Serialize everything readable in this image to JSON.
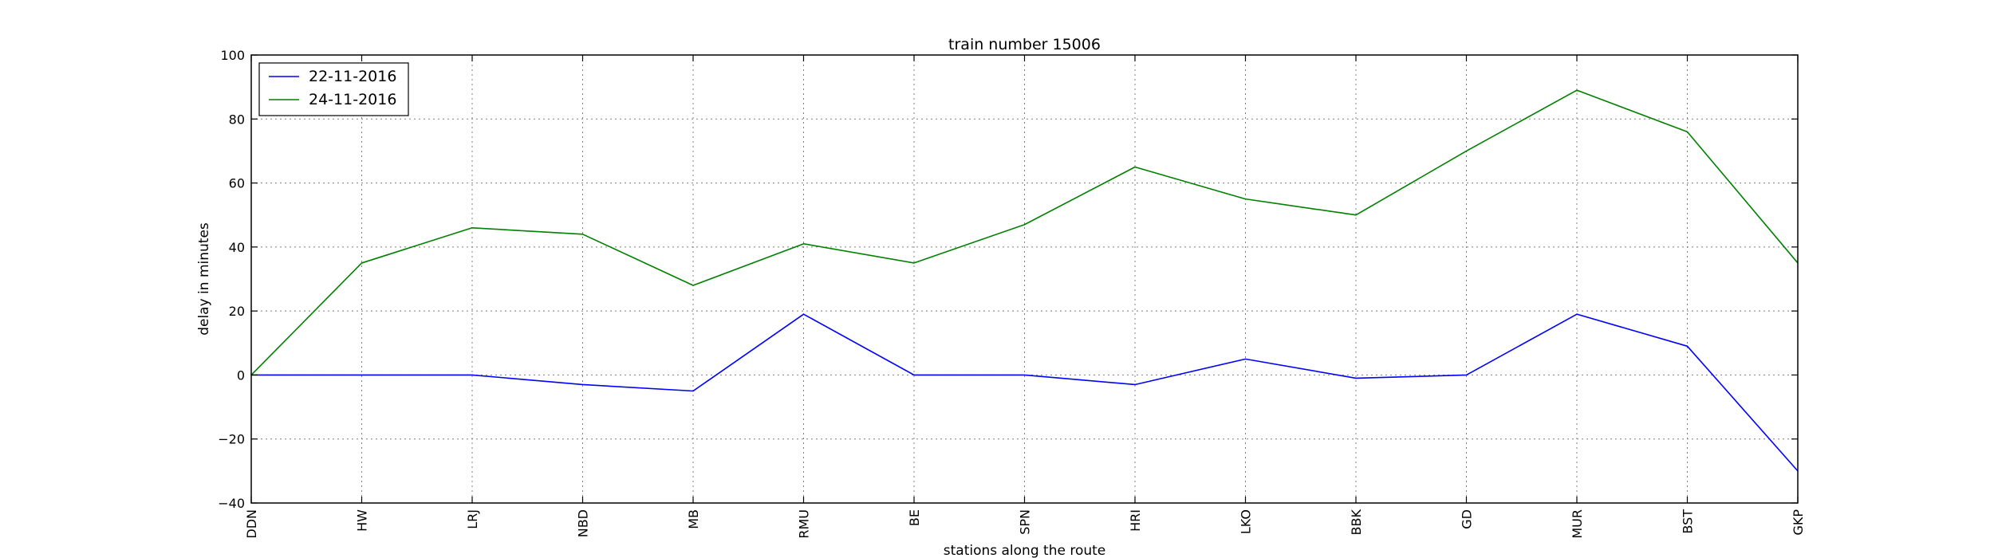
{
  "chart_data": {
    "type": "line",
    "title": "train number 15006",
    "xlabel": "stations along the route",
    "ylabel": "delay in minutes",
    "categories": [
      "DDN",
      "HW",
      "LRJ",
      "NBD",
      "MB",
      "RMU",
      "BE",
      "SPN",
      "HRI",
      "LKO",
      "BBK",
      "GD",
      "MUR",
      "BST",
      "GKP"
    ],
    "ylim": [
      -40,
      100
    ],
    "yticks": [
      -40,
      -20,
      0,
      20,
      40,
      60,
      80,
      100
    ],
    "ytick_labels": [
      "−40",
      "−20",
      "0",
      "20",
      "40",
      "60",
      "80",
      "100"
    ],
    "grid": true,
    "legend_position": "top-left",
    "series": [
      {
        "name": "22-11-2016",
        "color": "#0000ff",
        "values": [
          0,
          0,
          0,
          -3,
          -5,
          19,
          0,
          0,
          -3,
          5,
          -1,
          0,
          19,
          9,
          -30
        ]
      },
      {
        "name": "24-11-2016",
        "color": "#008000",
        "values": [
          0,
          35,
          46,
          44,
          28,
          41,
          35,
          47,
          65,
          55,
          50,
          70,
          89,
          76,
          35
        ]
      }
    ]
  }
}
